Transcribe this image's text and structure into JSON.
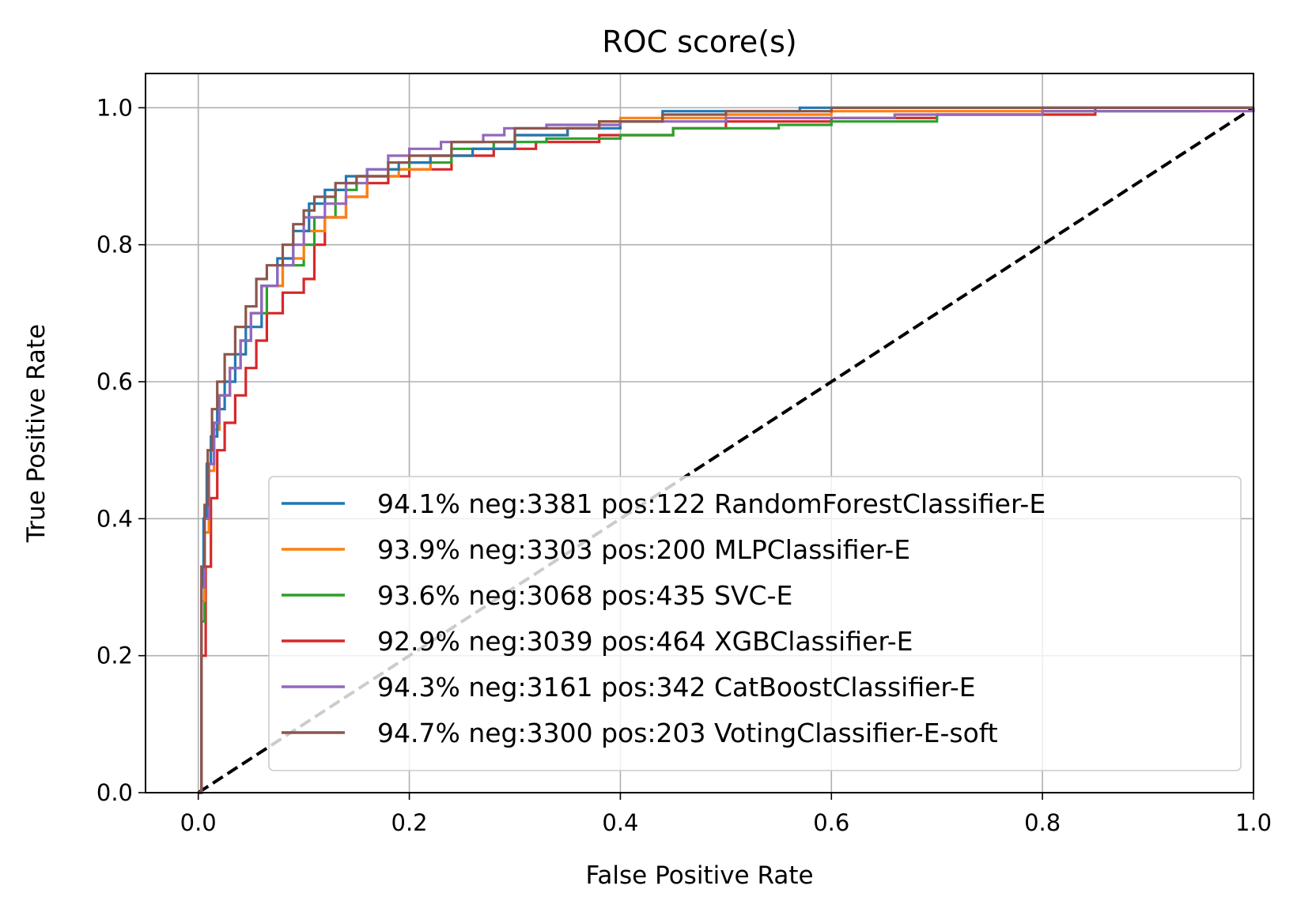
{
  "chart_data": {
    "type": "line",
    "title": "ROC score(s)",
    "xlabel": "False Positive Rate",
    "ylabel": "True Positive Rate",
    "xlim": [
      -0.05,
      1.0
    ],
    "ylim": [
      0.0,
      1.05
    ],
    "x_ticks": [
      "0.0",
      "0.2",
      "0.4",
      "0.6",
      "0.8",
      "1.0"
    ],
    "y_ticks": [
      "0.0",
      "0.2",
      "0.4",
      "0.6",
      "0.8",
      "1.0"
    ],
    "grid": true,
    "legend_position": "lower-right",
    "reference_line": {
      "x": [
        0,
        1
      ],
      "y": [
        0,
        1
      ],
      "color": "#000000",
      "style": "dashed"
    },
    "series": [
      {
        "name": "94.1% neg:3381 pos:122 RandomForestClassifier-E",
        "color": "#1f77b4",
        "x": [
          0.0,
          0.003,
          0.005,
          0.008,
          0.012,
          0.018,
          0.025,
          0.035,
          0.045,
          0.06,
          0.075,
          0.09,
          0.105,
          0.12,
          0.14,
          0.16,
          0.19,
          0.22,
          0.26,
          0.3,
          0.35,
          0.4,
          0.44,
          0.5,
          0.57,
          0.7,
          0.85,
          1.0
        ],
        "y": [
          0.0,
          0.3,
          0.4,
          0.48,
          0.52,
          0.56,
          0.6,
          0.64,
          0.68,
          0.74,
          0.78,
          0.82,
          0.86,
          0.88,
          0.9,
          0.91,
          0.92,
          0.93,
          0.94,
          0.96,
          0.97,
          0.98,
          0.995,
          0.995,
          1.0,
          1.0,
          1.0,
          1.0
        ]
      },
      {
        "name": "93.9% neg:3303 pos:200 MLPClassifier-E",
        "color": "#ff7f0e",
        "x": [
          0.0,
          0.003,
          0.006,
          0.01,
          0.015,
          0.02,
          0.03,
          0.04,
          0.05,
          0.06,
          0.08,
          0.1,
          0.12,
          0.14,
          0.16,
          0.19,
          0.22,
          0.26,
          0.3,
          0.35,
          0.38,
          0.4,
          0.5,
          0.6,
          0.8,
          1.0
        ],
        "y": [
          0.0,
          0.28,
          0.38,
          0.47,
          0.53,
          0.58,
          0.62,
          0.66,
          0.7,
          0.74,
          0.78,
          0.82,
          0.84,
          0.87,
          0.9,
          0.91,
          0.93,
          0.94,
          0.96,
          0.97,
          0.98,
          0.985,
          0.99,
          0.995,
          1.0,
          1.0
        ]
      },
      {
        "name": "93.6% neg:3068 pos:435 SVC-E",
        "color": "#2ca02c",
        "x": [
          0.0,
          0.003,
          0.006,
          0.01,
          0.015,
          0.02,
          0.03,
          0.04,
          0.05,
          0.065,
          0.08,
          0.1,
          0.11,
          0.13,
          0.15,
          0.18,
          0.2,
          0.24,
          0.28,
          0.33,
          0.4,
          0.45,
          0.55,
          0.6,
          0.7,
          0.8,
          0.95
        ],
        "y": [
          0.0,
          0.25,
          0.38,
          0.48,
          0.54,
          0.58,
          0.62,
          0.66,
          0.7,
          0.74,
          0.77,
          0.8,
          0.84,
          0.88,
          0.9,
          0.91,
          0.92,
          0.94,
          0.95,
          0.955,
          0.96,
          0.97,
          0.975,
          0.98,
          0.99,
          0.995,
          0.995
        ]
      },
      {
        "name": "92.9% neg:3039 pos:464 XGBClassifier-E",
        "color": "#d62728",
        "x": [
          0.0,
          0.003,
          0.007,
          0.012,
          0.018,
          0.025,
          0.035,
          0.045,
          0.055,
          0.065,
          0.08,
          0.1,
          0.11,
          0.12,
          0.14,
          0.16,
          0.18,
          0.2,
          0.24,
          0.28,
          0.32,
          0.38,
          0.45,
          0.5,
          0.6,
          0.7,
          0.85,
          1.0
        ],
        "y": [
          0.0,
          0.2,
          0.33,
          0.43,
          0.5,
          0.54,
          0.58,
          0.62,
          0.66,
          0.7,
          0.73,
          0.75,
          0.8,
          0.84,
          0.87,
          0.89,
          0.9,
          0.91,
          0.93,
          0.94,
          0.95,
          0.96,
          0.97,
          0.98,
          0.985,
          0.99,
          1.0,
          1.0
        ]
      },
      {
        "name": "94.3% neg:3161 pos:342 CatBoostClassifier-E",
        "color": "#9467bd",
        "x": [
          0.0,
          0.003,
          0.006,
          0.01,
          0.015,
          0.02,
          0.03,
          0.04,
          0.05,
          0.06,
          0.075,
          0.09,
          0.1,
          0.12,
          0.14,
          0.16,
          0.18,
          0.2,
          0.23,
          0.27,
          0.29,
          0.33,
          0.4,
          0.5,
          0.66,
          0.8,
          1.0
        ],
        "y": [
          0.0,
          0.3,
          0.4,
          0.48,
          0.54,
          0.58,
          0.62,
          0.66,
          0.7,
          0.74,
          0.77,
          0.8,
          0.84,
          0.86,
          0.89,
          0.91,
          0.93,
          0.94,
          0.95,
          0.96,
          0.97,
          0.975,
          0.98,
          0.985,
          0.99,
          0.995,
          1.0
        ]
      },
      {
        "name": "94.7% neg:3300 pos:203 VotingClassifier-E-soft",
        "color": "#8c564b",
        "x": [
          0.0,
          0.003,
          0.006,
          0.009,
          0.013,
          0.018,
          0.025,
          0.035,
          0.045,
          0.055,
          0.065,
          0.08,
          0.09,
          0.1,
          0.11,
          0.13,
          0.15,
          0.18,
          0.2,
          0.24,
          0.3,
          0.38,
          0.44,
          0.5,
          0.6,
          0.75,
          0.9,
          1.0
        ],
        "y": [
          0.0,
          0.33,
          0.42,
          0.5,
          0.56,
          0.6,
          0.64,
          0.68,
          0.71,
          0.75,
          0.77,
          0.8,
          0.83,
          0.85,
          0.87,
          0.89,
          0.9,
          0.92,
          0.93,
          0.95,
          0.97,
          0.98,
          0.99,
          0.995,
          1.0,
          1.0,
          1.0,
          1.0
        ]
      }
    ]
  }
}
